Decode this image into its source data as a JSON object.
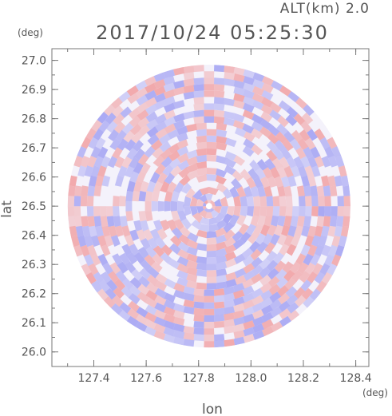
{
  "header": {
    "altitude_label": "ALT(km) 2.0",
    "timestamp": "2017/10/24 05:25:30"
  },
  "chart_data": {
    "type": "heatmap",
    "title": "2017/10/24 05:25:30",
    "subtitle": "ALT(km) 2.0",
    "xlabel": "lon",
    "ylabel": "lat",
    "x_unit": "(deg)",
    "y_unit": "(deg)",
    "xlim": [
      127.24,
      128.45
    ],
    "ylim": [
      25.95,
      27.04
    ],
    "x_ticks": [
      "127.4",
      "127.6",
      "127.8",
      "128.0",
      "128.2",
      "128.4"
    ],
    "y_ticks": [
      "26.0",
      "26.1",
      "26.2",
      "26.3",
      "26.4",
      "26.5",
      "26.6",
      "26.7",
      "26.8",
      "26.9",
      "27.0"
    ],
    "x_tick_values": [
      127.4,
      127.6,
      127.8,
      128.0,
      128.2,
      128.4
    ],
    "y_tick_values": [
      26.0,
      26.1,
      26.2,
      26.3,
      26.4,
      26.5,
      26.6,
      26.7,
      26.8,
      26.9,
      27.0
    ],
    "center": {
      "lon": 127.84,
      "lat": 26.5
    },
    "radius_deg": 0.54,
    "colors": {
      "positive": "#f08a8a",
      "negative": "#8a8af0",
      "frame": "#777777",
      "text": "#555555"
    },
    "grid": false,
    "legend": "none"
  }
}
